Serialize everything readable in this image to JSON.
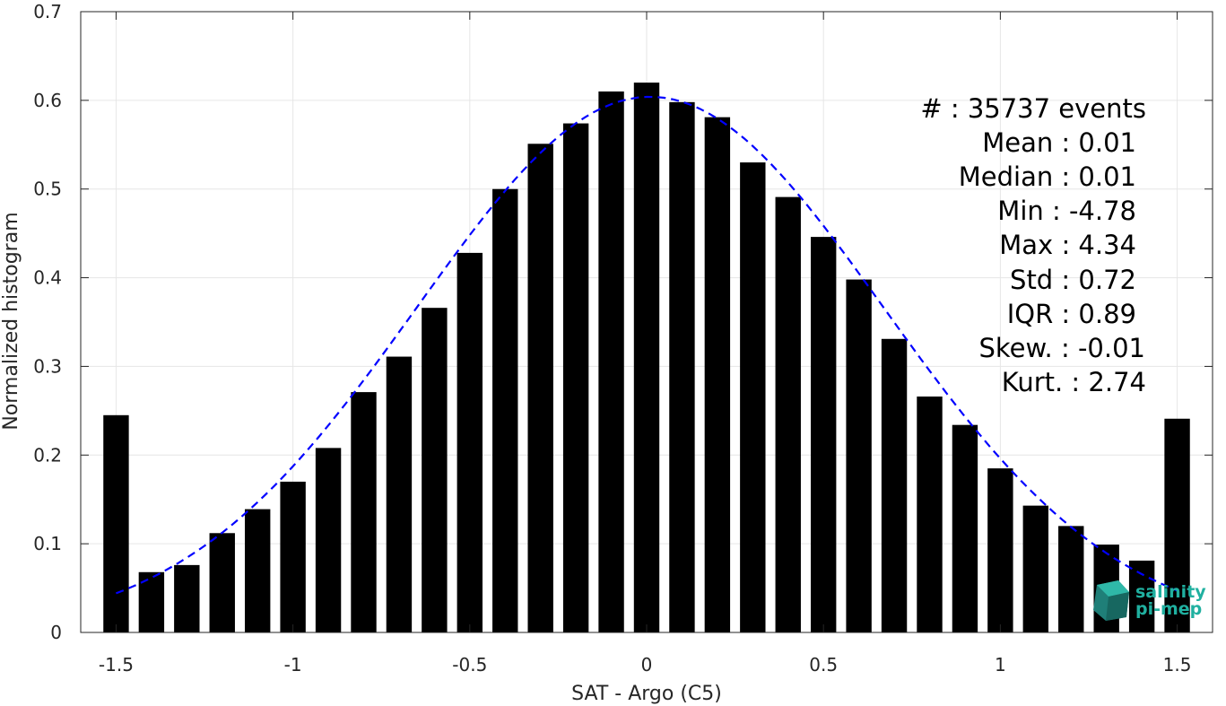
{
  "chart_data": {
    "type": "bar",
    "title": "",
    "xlabel": "SAT - Argo (C5)",
    "ylabel": "Normalized histogram",
    "xlim": [
      -1.6,
      1.6
    ],
    "ylim": [
      0,
      0.7
    ],
    "xticks": [
      -1.5,
      -1,
      -0.5,
      0,
      0.5,
      1,
      1.5
    ],
    "xtick_labels": [
      "-1.5",
      "-1",
      "-0.5",
      "0",
      "0.5",
      "1",
      "1.5"
    ],
    "yticks": [
      0,
      0.1,
      0.2,
      0.3,
      0.4,
      0.5,
      0.6,
      0.7
    ],
    "ytick_labels": [
      "0",
      "0.1",
      "0.2",
      "0.3",
      "0.4",
      "0.5",
      "0.6",
      "0.7"
    ],
    "grid": true,
    "bar_color": "#000000",
    "bins": [
      -1.5,
      -1.4,
      -1.3,
      -1.2,
      -1.1,
      -1.0,
      -0.9,
      -0.8,
      -0.7,
      -0.6,
      -0.5,
      -0.4,
      -0.3,
      -0.2,
      -0.1,
      0.0,
      0.1,
      0.2,
      0.3,
      0.4,
      0.5,
      0.6,
      0.7,
      0.8,
      0.9,
      1.0,
      1.1,
      1.2,
      1.3,
      1.4,
      1.5
    ],
    "values": [
      0.245,
      0.068,
      0.076,
      0.112,
      0.139,
      0.17,
      0.208,
      0.271,
      0.311,
      0.366,
      0.428,
      0.5,
      0.551,
      0.574,
      0.61,
      0.62,
      0.598,
      0.581,
      0.53,
      0.491,
      0.446,
      0.398,
      0.331,
      0.266,
      0.234,
      0.185,
      0.143,
      0.12,
      0.099,
      0.081,
      0.241
    ],
    "fit": {
      "type": "gaussian",
      "color": "#0000ff",
      "style": "dashed",
      "mean": 0.01,
      "std": 0.66,
      "peak": 0.604,
      "x_range": [
        -1.5,
        1.5
      ]
    }
  },
  "stats": {
    "events": "#  : 35737 events",
    "mean": "Mean : 0.01",
    "median": "Median : 0.01",
    "min": "Min : -4.78",
    "max": "Max : 4.34",
    "std": "Std : 0.72",
    "iqr": "IQR : 0.89",
    "skew": "Skew. : -0.01",
    "kurt": "Kurt. : 2.74"
  },
  "logo": {
    "line1": "salinity",
    "line2": "pi-mep",
    "color": "#20b0a0"
  }
}
